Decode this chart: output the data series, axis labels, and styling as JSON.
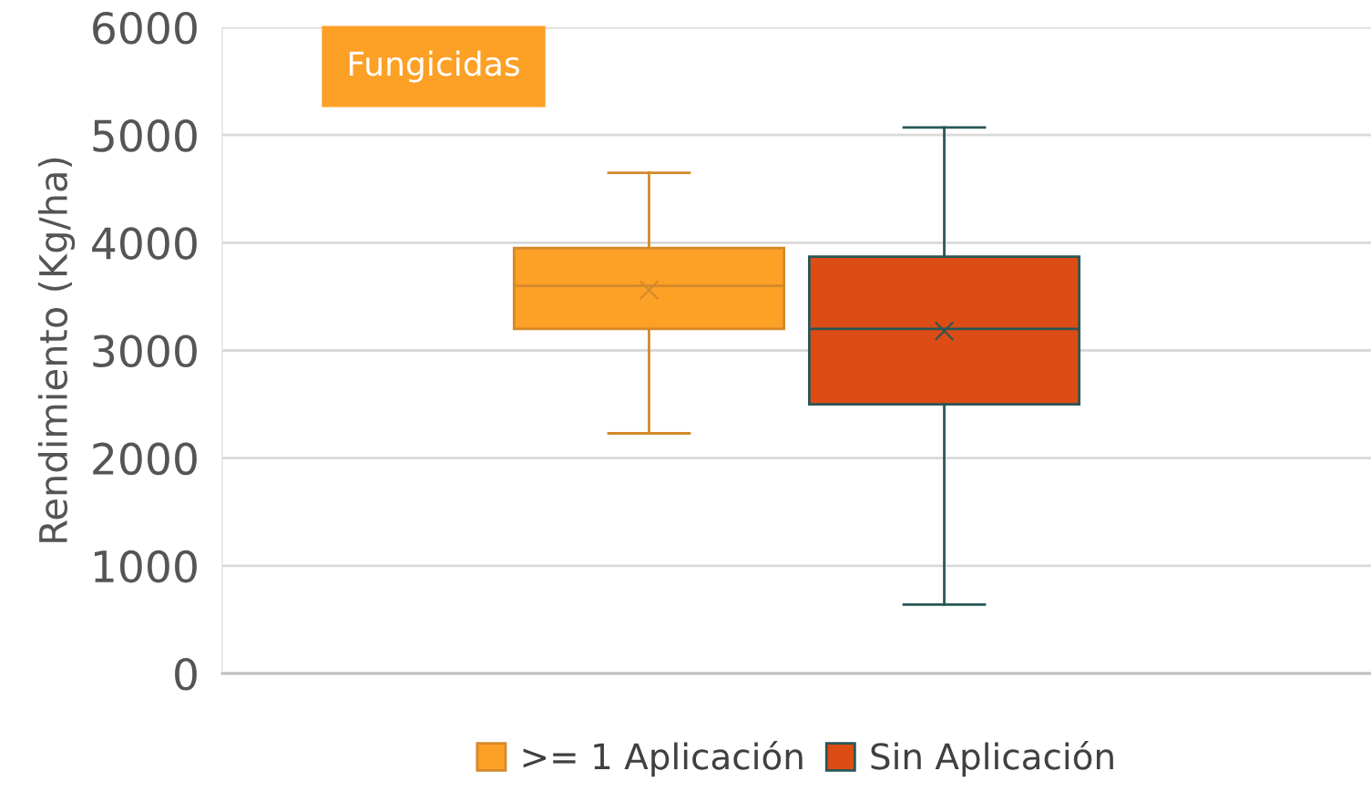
{
  "chart_data": {
    "type": "box",
    "title": "Fungicidas",
    "ylabel": "Rendimiento (Kg/ha)",
    "categories": [
      null
    ],
    "series": [
      {
        "name": ">= 1 Aplicación",
        "color": "#fca026",
        "boxes": [
          {
            "low": 2230,
            "q1": 3200,
            "median": 3600,
            "q3": 3950,
            "high": 4650,
            "mean": 3560
          }
        ]
      },
      {
        "name": "Sin Aplicación",
        "color": "#dc4c14",
        "boxes": [
          {
            "low": 640,
            "q1": 2500,
            "median": 3200,
            "q3": 3870,
            "high": 5070,
            "mean": 3180
          }
        ]
      }
    ],
    "ylim": [
      0,
      6000
    ],
    "yticks": [
      0,
      1000,
      2000,
      3000,
      4000,
      5000,
      6000
    ],
    "grid": "y",
    "legend": "bottom",
    "marker": "cross"
  }
}
